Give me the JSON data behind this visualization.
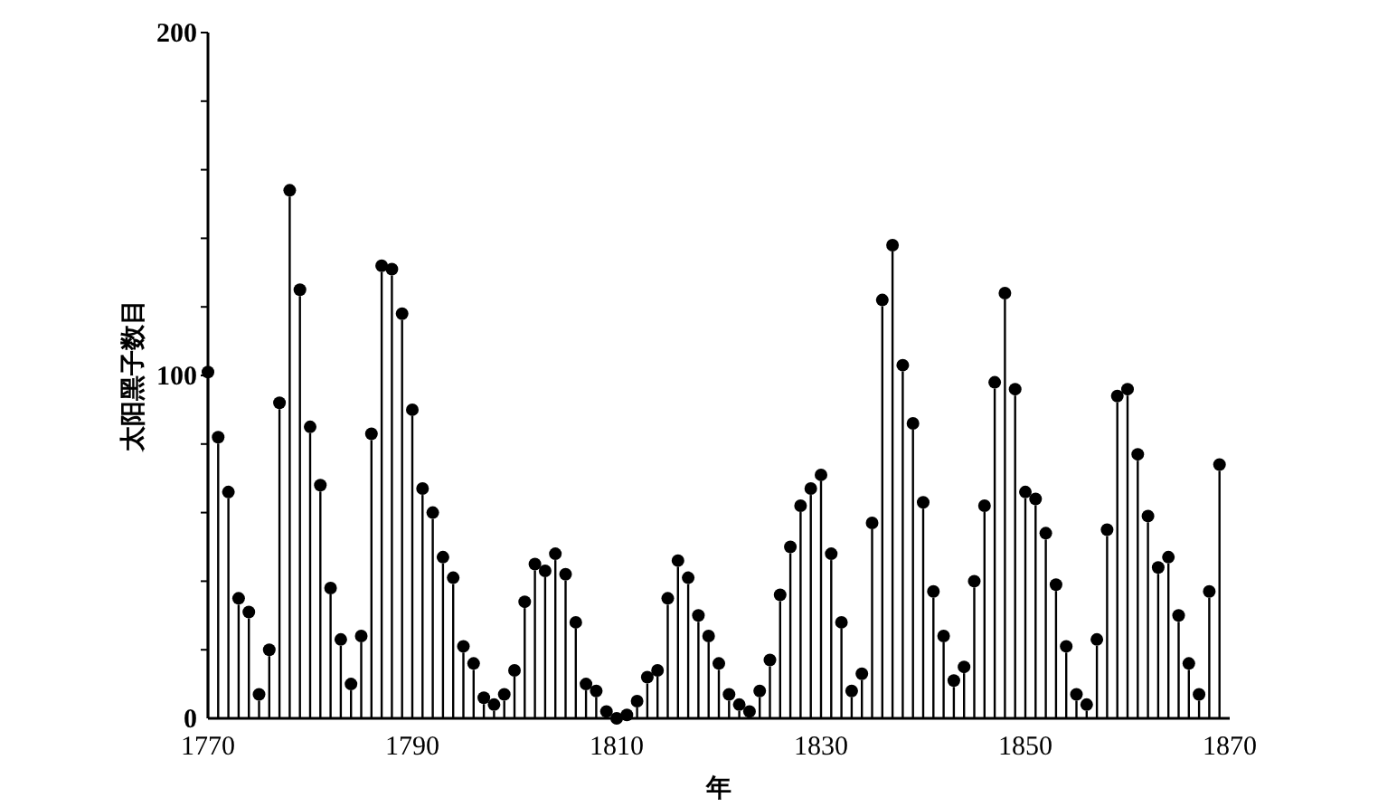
{
  "chart_data": {
    "type": "lollipop",
    "xlabel": "年",
    "ylabel": "太阳黑子数目",
    "x": [
      1770,
      1771,
      1772,
      1773,
      1774,
      1775,
      1776,
      1777,
      1778,
      1779,
      1780,
      1781,
      1782,
      1783,
      1784,
      1785,
      1786,
      1787,
      1788,
      1789,
      1790,
      1791,
      1792,
      1793,
      1794,
      1795,
      1796,
      1797,
      1798,
      1799,
      1800,
      1801,
      1802,
      1803,
      1804,
      1805,
      1806,
      1807,
      1808,
      1809,
      1810,
      1811,
      1812,
      1813,
      1814,
      1815,
      1816,
      1817,
      1818,
      1819,
      1820,
      1821,
      1822,
      1823,
      1824,
      1825,
      1826,
      1827,
      1828,
      1829,
      1830,
      1831,
      1832,
      1833,
      1834,
      1835,
      1836,
      1837,
      1838,
      1839,
      1840,
      1841,
      1842,
      1843,
      1844,
      1845,
      1846,
      1847,
      1848,
      1849,
      1850,
      1851,
      1852,
      1853,
      1854,
      1855,
      1856,
      1857,
      1858,
      1859,
      1860,
      1861,
      1862,
      1863,
      1864,
      1865,
      1866,
      1867,
      1868,
      1869
    ],
    "series": [
      {
        "color": "#000000",
        "values": [
          101,
          82,
          66,
          35,
          31,
          7,
          20,
          92,
          154,
          125,
          85,
          68,
          38,
          23,
          10,
          24,
          83,
          132,
          131,
          118,
          90,
          67,
          60,
          47,
          41,
          21,
          16,
          6,
          4,
          7,
          14,
          34,
          45,
          43,
          48,
          42,
          28,
          10,
          8,
          2,
          0,
          1,
          5,
          12,
          14,
          35,
          46,
          41,
          30,
          24,
          16,
          7,
          4,
          2,
          8,
          17,
          36,
          50,
          62,
          67,
          71,
          48,
          28,
          8,
          13,
          57,
          122,
          138,
          103,
          86,
          63,
          37,
          24,
          11,
          15,
          40,
          62,
          98,
          124,
          96,
          66,
          64,
          54,
          39,
          21,
          7,
          4,
          23,
          55,
          94,
          96,
          77,
          59,
          44,
          47,
          30,
          16,
          7,
          37,
          74
        ]
      }
    ],
    "xlim": [
      1770,
      1870
    ],
    "xticks": [
      1770,
      1790,
      1810,
      1830,
      1850,
      1870
    ],
    "ylim": [
      0,
      200
    ],
    "yticks": [
      0,
      {
        "value": 20,
        "label": null
      },
      {
        "value": 40,
        "label": null
      },
      {
        "value": 60,
        "label": null
      },
      {
        "value": 80,
        "label": null
      },
      100,
      {
        "value": 120,
        "label": null
      },
      {
        "value": 140,
        "label": null
      },
      {
        "value": 160,
        "label": null
      },
      {
        "value": 180,
        "label": null
      },
      200
    ],
    "marker": "circle",
    "grid": false
  }
}
